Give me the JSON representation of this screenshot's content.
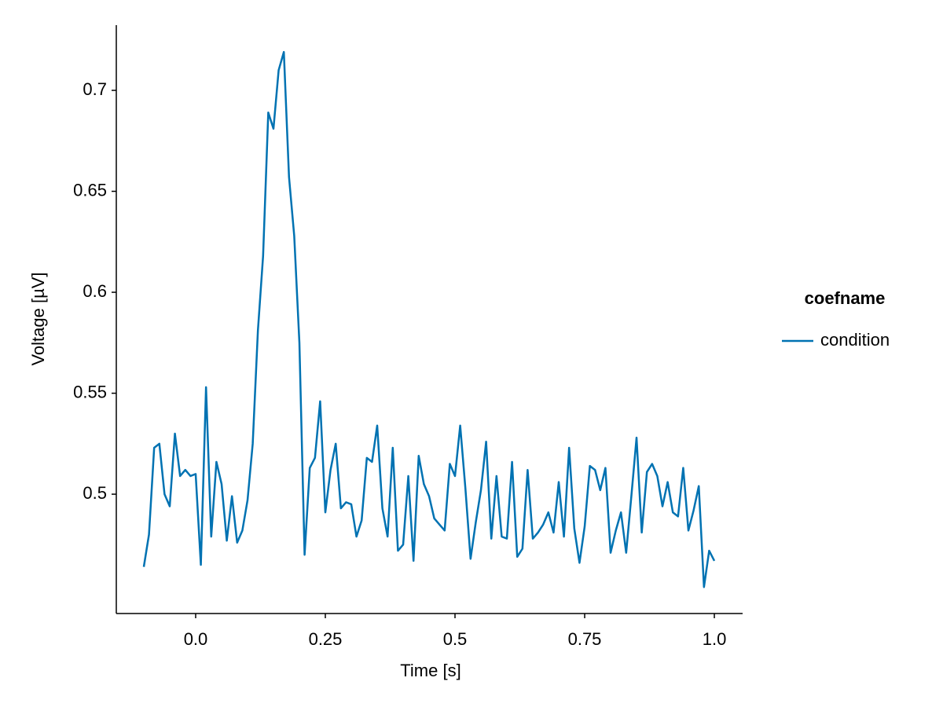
{
  "chart_data": {
    "type": "line",
    "x": [
      -0.1,
      -0.09,
      -0.08,
      -0.07,
      -0.06,
      -0.05,
      -0.04,
      -0.03,
      -0.02,
      -0.01,
      0,
      0.01,
      0.02,
      0.03,
      0.04,
      0.05,
      0.06,
      0.07,
      0.08,
      0.09,
      0.1,
      0.11,
      0.12,
      0.13,
      0.14,
      0.15,
      0.16,
      0.17,
      0.18,
      0.19,
      0.2,
      0.21,
      0.22,
      0.23,
      0.24,
      0.25,
      0.26,
      0.27,
      0.28,
      0.29,
      0.3,
      0.31,
      0.32,
      0.33,
      0.34,
      0.35,
      0.36,
      0.37,
      0.38,
      0.39,
      0.4,
      0.41,
      0.42,
      0.43,
      0.44,
      0.45,
      0.46,
      0.47,
      0.48,
      0.49,
      0.5,
      0.51,
      0.52,
      0.53,
      0.54,
      0.55,
      0.56,
      0.57,
      0.58,
      0.59,
      0.6,
      0.61,
      0.62,
      0.63,
      0.64,
      0.65,
      0.66,
      0.67,
      0.68,
      0.69,
      0.7,
      0.71,
      0.72,
      0.73,
      0.74,
      0.75,
      0.76,
      0.77,
      0.78,
      0.79,
      0.8,
      0.81,
      0.82,
      0.83,
      0.84,
      0.85,
      0.86,
      0.87,
      0.88,
      0.89,
      0.9,
      0.91,
      0.92,
      0.93,
      0.94,
      0.95,
      0.96,
      0.97,
      0.98,
      0.99,
      1.0
    ],
    "series": [
      {
        "name": "condition",
        "color": "#0072b2",
        "values": [
          0.464,
          0.48,
          0.523,
          0.525,
          0.5,
          0.494,
          0.53,
          0.509,
          0.512,
          0.509,
          0.51,
          0.465,
          0.553,
          0.479,
          0.516,
          0.505,
          0.477,
          0.499,
          0.476,
          0.482,
          0.497,
          0.525,
          0.581,
          0.618,
          0.689,
          0.681,
          0.71,
          0.719,
          0.657,
          0.628,
          0.575,
          0.47,
          0.513,
          0.518,
          0.546,
          0.491,
          0.512,
          0.525,
          0.493,
          0.496,
          0.495,
          0.479,
          0.487,
          0.518,
          0.516,
          0.534,
          0.493,
          0.479,
          0.523,
          0.472,
          0.475,
          0.509,
          0.467,
          0.519,
          0.505,
          0.499,
          0.488,
          0.485,
          0.482,
          0.515,
          0.509,
          0.534,
          0.503,
          0.468,
          0.486,
          0.502,
          0.526,
          0.478,
          0.509,
          0.479,
          0.478,
          0.516,
          0.469,
          0.473,
          0.512,
          0.478,
          0.481,
          0.485,
          0.491,
          0.481,
          0.506,
          0.479,
          0.523,
          0.483,
          0.466,
          0.484,
          0.514,
          0.512,
          0.502,
          0.513,
          0.471,
          0.482,
          0.491,
          0.471,
          0.499,
          0.528,
          0.481,
          0.511,
          0.515,
          0.509,
          0.494,
          0.506,
          0.491,
          0.489,
          0.513,
          0.482,
          0.492,
          0.504,
          0.454,
          0.472,
          0.467
        ]
      }
    ],
    "x_label": "Time [s]",
    "y_label": "Voltage [µV]",
    "legend_title": "coefname",
    "legend_position": "right",
    "xlim": [
      -0.153,
      1.0545
    ],
    "xticks": [
      {
        "value": 0,
        "label": "0.0"
      },
      0.25,
      0.5,
      0.75,
      {
        "value": 1,
        "label": "1.0"
      }
    ],
    "ylim": [
      0.4409,
      0.7323
    ],
    "yticks": [
      0.5,
      0.55,
      0.6,
      0.65,
      0.7
    ],
    "grid": false
  }
}
